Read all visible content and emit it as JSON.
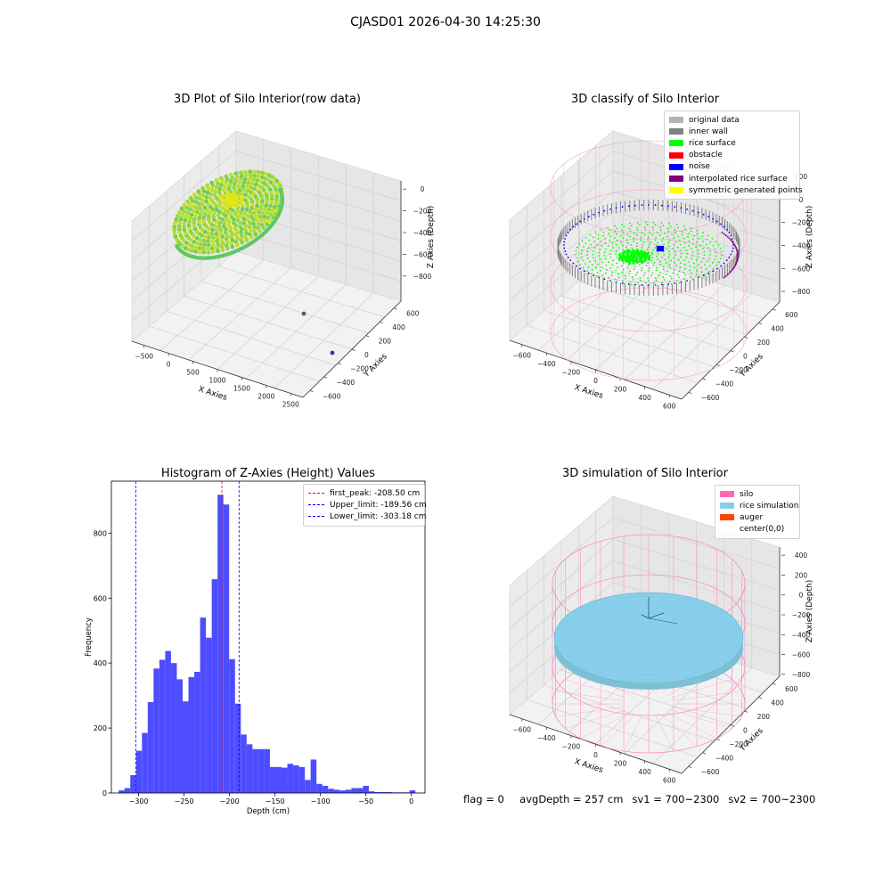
{
  "figure": {
    "suptitle": "CJASD01 2026-04-30 14:25:30",
    "status": {
      "flag": "flag = 0",
      "avg_depth": "avgDepth = 257 cm",
      "sv1": "sv1 = 700~2300",
      "sv2": "sv2 = 700~2300"
    }
  },
  "chart_data": [
    {
      "type": "scatter",
      "projection": "3d",
      "title": "3D Plot of Silo Interior(row data)",
      "xlabel": "X Axies",
      "ylabel": "Y Axies",
      "zlabel": "Z Axies (Depth)",
      "xticks": [
        "−500",
        "0",
        "500",
        "1000",
        "1500",
        "2000",
        "2500"
      ],
      "yticks": [
        "−600",
        "−400",
        "−200",
        "0",
        "200",
        "400",
        "600"
      ],
      "zticks": [
        "0",
        "−200",
        "−400",
        "−600",
        "−800"
      ],
      "xlim": [
        -600,
        2600
      ],
      "ylim": [
        -700,
        700
      ],
      "zlim": [
        -950,
        50
      ],
      "colormap": "viridis",
      "outlier_points": [
        {
          "x": 1500,
          "y": 600,
          "z": -900,
          "color": "#6a4c93"
        },
        {
          "x": 2450,
          "y": 400,
          "z": -920,
          "color": "#5b2a86"
        }
      ]
    },
    {
      "type": "scatter",
      "projection": "3d",
      "title": "3D classify of Silo Interior",
      "xlabel": "X Axies",
      "ylabel": "Y Axies",
      "zlabel": "Z Axies (Depth)",
      "xticks": [
        "−600",
        "−400",
        "−200",
        "0",
        "200",
        "400",
        "600"
      ],
      "yticks": [
        "−600",
        "−400",
        "−200",
        "0",
        "200",
        "400",
        "600"
      ],
      "zticks": [
        "200",
        "0",
        "−200",
        "−400",
        "−600",
        "−800"
      ],
      "legend_position": "upper right",
      "legend": [
        {
          "label": "original data",
          "color": "#b3b3b3"
        },
        {
          "label": "inner wall",
          "color": "#808080"
        },
        {
          "label": "rice surface",
          "color": "#00ff00"
        },
        {
          "label": "obstacle",
          "color": "#ff0000"
        },
        {
          "label": "noise",
          "color": "#0000ff"
        },
        {
          "label": "interpolated rice surface",
          "color": "#800080"
        },
        {
          "label": "symmetric generated points",
          "color": "#ffff00"
        }
      ]
    },
    {
      "type": "bar",
      "title": "Histogram of Z-Axies (Height) Values",
      "xlabel": "Depth (cm)",
      "ylabel": "Frequency",
      "xlim": [
        -330,
        15
      ],
      "ylim": [
        0,
        960
      ],
      "xticks": [
        -300,
        -250,
        -200,
        -150,
        -100,
        -50,
        0
      ],
      "yticks": [
        0,
        200,
        400,
        600,
        800
      ],
      "bar_color": "#4d4dff",
      "bin_width": 6.4,
      "bins": [
        {
          "x": -322,
          "value": 8
        },
        {
          "x": -315.6,
          "value": 15
        },
        {
          "x": -309.2,
          "value": 55
        },
        {
          "x": -302.8,
          "value": 130
        },
        {
          "x": -296.4,
          "value": 185
        },
        {
          "x": -290,
          "value": 280
        },
        {
          "x": -283.6,
          "value": 383
        },
        {
          "x": -277.2,
          "value": 410
        },
        {
          "x": -270.8,
          "value": 437
        },
        {
          "x": -264.4,
          "value": 400
        },
        {
          "x": -258,
          "value": 350
        },
        {
          "x": -251.6,
          "value": 282
        },
        {
          "x": -245.2,
          "value": 357
        },
        {
          "x": -238.8,
          "value": 373
        },
        {
          "x": -232.4,
          "value": 540
        },
        {
          "x": -226,
          "value": 478
        },
        {
          "x": -219.6,
          "value": 658
        },
        {
          "x": -213.2,
          "value": 918
        },
        {
          "x": -206.8,
          "value": 888
        },
        {
          "x": -200.4,
          "value": 412
        },
        {
          "x": -194,
          "value": 275
        },
        {
          "x": -187.6,
          "value": 180
        },
        {
          "x": -181.2,
          "value": 150
        },
        {
          "x": -174.8,
          "value": 135
        },
        {
          "x": -168.4,
          "value": 135
        },
        {
          "x": -162,
          "value": 135
        },
        {
          "x": -155.6,
          "value": 80
        },
        {
          "x": -149.2,
          "value": 80
        },
        {
          "x": -142.8,
          "value": 78
        },
        {
          "x": -136.4,
          "value": 90
        },
        {
          "x": -130,
          "value": 85
        },
        {
          "x": -123.6,
          "value": 80
        },
        {
          "x": -117.2,
          "value": 40
        },
        {
          "x": -110.8,
          "value": 103
        },
        {
          "x": -104.4,
          "value": 28
        },
        {
          "x": -98,
          "value": 22
        },
        {
          "x": -91.6,
          "value": 13
        },
        {
          "x": -85.2,
          "value": 10
        },
        {
          "x": -78.8,
          "value": 8
        },
        {
          "x": -72.4,
          "value": 10
        },
        {
          "x": -66,
          "value": 15
        },
        {
          "x": -59.6,
          "value": 15
        },
        {
          "x": -53.2,
          "value": 22
        },
        {
          "x": -46.8,
          "value": 5
        },
        {
          "x": -40.4,
          "value": 3
        },
        {
          "x": -34,
          "value": 3
        },
        {
          "x": -27.6,
          "value": 3
        },
        {
          "x": -21.2,
          "value": 2
        },
        {
          "x": -14.8,
          "value": 2
        },
        {
          "x": -8.4,
          "value": 2
        },
        {
          "x": -2,
          "value": 8
        }
      ],
      "lines": [
        {
          "label": "first_peak: -208.50 cm",
          "x": -208.5,
          "color": "#ff0000"
        },
        {
          "label": "Upper_limit: -189.56 cm",
          "x": -189.56,
          "color": "#0000ff"
        },
        {
          "label": "Lower_limit: -303.18 cm",
          "x": -303.18,
          "color": "#0000ff"
        }
      ],
      "legend_position": "upper right"
    },
    {
      "type": "scatter",
      "projection": "3d",
      "title": "3D simulation of Silo Interior",
      "xlabel": "X Axies",
      "ylabel": "Y Axies",
      "zlabel": "Z Axies (Depth)",
      "xticks": [
        "−600",
        "−400",
        "−200",
        "0",
        "200",
        "400",
        "600"
      ],
      "yticks": [
        "−600",
        "−400",
        "−200",
        "0",
        "200",
        "400",
        "600"
      ],
      "zticks": [
        "400",
        "200",
        "0",
        "−200",
        "−400",
        "−600",
        "−800"
      ],
      "legend_position": "upper right",
      "legend": [
        {
          "label": "silo",
          "color": "#ff69b4"
        },
        {
          "label": "rice simulation",
          "color": "#87ceeb"
        },
        {
          "label": "auger",
          "color": "#ff4500"
        },
        {
          "label": "center(0,0)",
          "color": "#ffffff"
        }
      ]
    }
  ]
}
